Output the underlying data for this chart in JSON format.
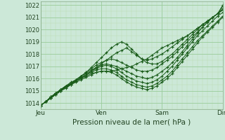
{
  "title": "Pression niveau de la mer( hPa )",
  "bg_color": "#cce8d8",
  "line_color": "#1a5c1a",
  "grid_major_color": "#99cc99",
  "grid_minor_color": "#bbddb0",
  "ylim": [
    1013.5,
    1022.3
  ],
  "yticks": [
    1014,
    1015,
    1016,
    1017,
    1018,
    1019,
    1020,
    1021,
    1022
  ],
  "xtick_labels": [
    "Jeu",
    "Ven",
    "Sam",
    "Dim"
  ],
  "xtick_positions": [
    0,
    72,
    144,
    216
  ],
  "x_total": 216,
  "series": [
    [
      1013.8,
      1014.1,
      1014.4,
      1014.7,
      1015.0,
      1015.2,
      1015.5,
      1015.7,
      1015.9,
      1016.1,
      1016.3,
      1016.5,
      1016.6,
      1016.6,
      1016.6,
      1016.7,
      1016.8,
      1016.9,
      1017.0,
      1017.2,
      1017.4,
      1017.6,
      1017.9,
      1018.2,
      1018.5,
      1018.7,
      1018.9,
      1019.1,
      1019.3,
      1019.5,
      1019.8,
      1020.1,
      1020.4,
      1020.7,
      1021.0,
      1021.3,
      1021.6
    ],
    [
      1013.8,
      1014.1,
      1014.5,
      1014.8,
      1015.1,
      1015.3,
      1015.5,
      1015.8,
      1016.0,
      1016.3,
      1016.6,
      1016.9,
      1017.2,
      1017.5,
      1017.8,
      1018.1,
      1018.3,
      1018.5,
      1018.2,
      1017.9,
      1017.6,
      1017.5,
      1017.6,
      1017.8,
      1018.0,
      1018.3,
      1018.6,
      1018.9,
      1019.2,
      1019.5,
      1019.8,
      1020.1,
      1020.4,
      1020.7,
      1021.0,
      1021.3,
      1021.9
    ],
    [
      1013.8,
      1014.1,
      1014.5,
      1014.8,
      1015.1,
      1015.4,
      1015.6,
      1015.9,
      1016.2,
      1016.5,
      1016.9,
      1017.3,
      1017.7,
      1018.1,
      1018.5,
      1018.8,
      1019.0,
      1018.8,
      1018.4,
      1018.0,
      1017.6,
      1017.3,
      1017.2,
      1017.2,
      1017.4,
      1017.7,
      1018.0,
      1018.4,
      1018.8,
      1019.2,
      1019.6,
      1020.0,
      1020.4,
      1020.7,
      1021.0,
      1021.3,
      1022.0
    ],
    [
      1013.8,
      1014.1,
      1014.4,
      1014.8,
      1015.1,
      1015.4,
      1015.7,
      1015.9,
      1016.2,
      1016.5,
      1016.8,
      1017.1,
      1017.3,
      1017.5,
      1017.6,
      1017.5,
      1017.3,
      1017.1,
      1016.9,
      1016.7,
      1016.6,
      1016.6,
      1016.7,
      1016.9,
      1017.2,
      1017.5,
      1017.8,
      1018.2,
      1018.6,
      1019.0,
      1019.4,
      1019.8,
      1020.2,
      1020.6,
      1021.0,
      1021.3,
      1021.6
    ],
    [
      1013.8,
      1014.1,
      1014.5,
      1014.8,
      1015.1,
      1015.4,
      1015.6,
      1015.9,
      1016.2,
      1016.4,
      1016.7,
      1016.9,
      1017.1,
      1017.2,
      1017.1,
      1017.0,
      1016.8,
      1016.6,
      1016.4,
      1016.2,
      1016.1,
      1016.0,
      1016.1,
      1016.3,
      1016.6,
      1016.9,
      1017.3,
      1017.7,
      1018.2,
      1018.7,
      1019.2,
      1019.7,
      1020.2,
      1020.6,
      1021.0,
      1021.3,
      1021.7
    ],
    [
      1013.8,
      1014.1,
      1014.4,
      1014.7,
      1015.0,
      1015.3,
      1015.6,
      1015.8,
      1016.1,
      1016.3,
      1016.6,
      1016.8,
      1017.0,
      1017.1,
      1017.0,
      1016.8,
      1016.5,
      1016.2,
      1016.0,
      1015.8,
      1015.7,
      1015.6,
      1015.7,
      1015.9,
      1016.2,
      1016.6,
      1017.0,
      1017.5,
      1018.0,
      1018.5,
      1019.0,
      1019.5,
      1019.9,
      1020.3,
      1020.7,
      1021.1,
      1021.4
    ],
    [
      1013.8,
      1014.1,
      1014.4,
      1014.7,
      1015.0,
      1015.3,
      1015.6,
      1015.8,
      1016.1,
      1016.3,
      1016.5,
      1016.7,
      1016.8,
      1016.8,
      1016.7,
      1016.5,
      1016.2,
      1015.9,
      1015.7,
      1015.5,
      1015.4,
      1015.3,
      1015.4,
      1015.6,
      1015.9,
      1016.2,
      1016.6,
      1017.1,
      1017.6,
      1018.1,
      1018.6,
      1019.1,
      1019.5,
      1019.9,
      1020.3,
      1020.7,
      1021.1
    ],
    [
      1013.8,
      1014.1,
      1014.4,
      1014.7,
      1015.0,
      1015.3,
      1015.5,
      1015.8,
      1016.0,
      1016.2,
      1016.4,
      1016.5,
      1016.6,
      1016.6,
      1016.5,
      1016.3,
      1016.0,
      1015.7,
      1015.5,
      1015.3,
      1015.2,
      1015.1,
      1015.2,
      1015.4,
      1015.7,
      1016.0,
      1016.4,
      1016.9,
      1017.4,
      1017.9,
      1018.4,
      1018.9,
      1019.4,
      1019.8,
      1020.2,
      1020.6,
      1021.0
    ]
  ]
}
